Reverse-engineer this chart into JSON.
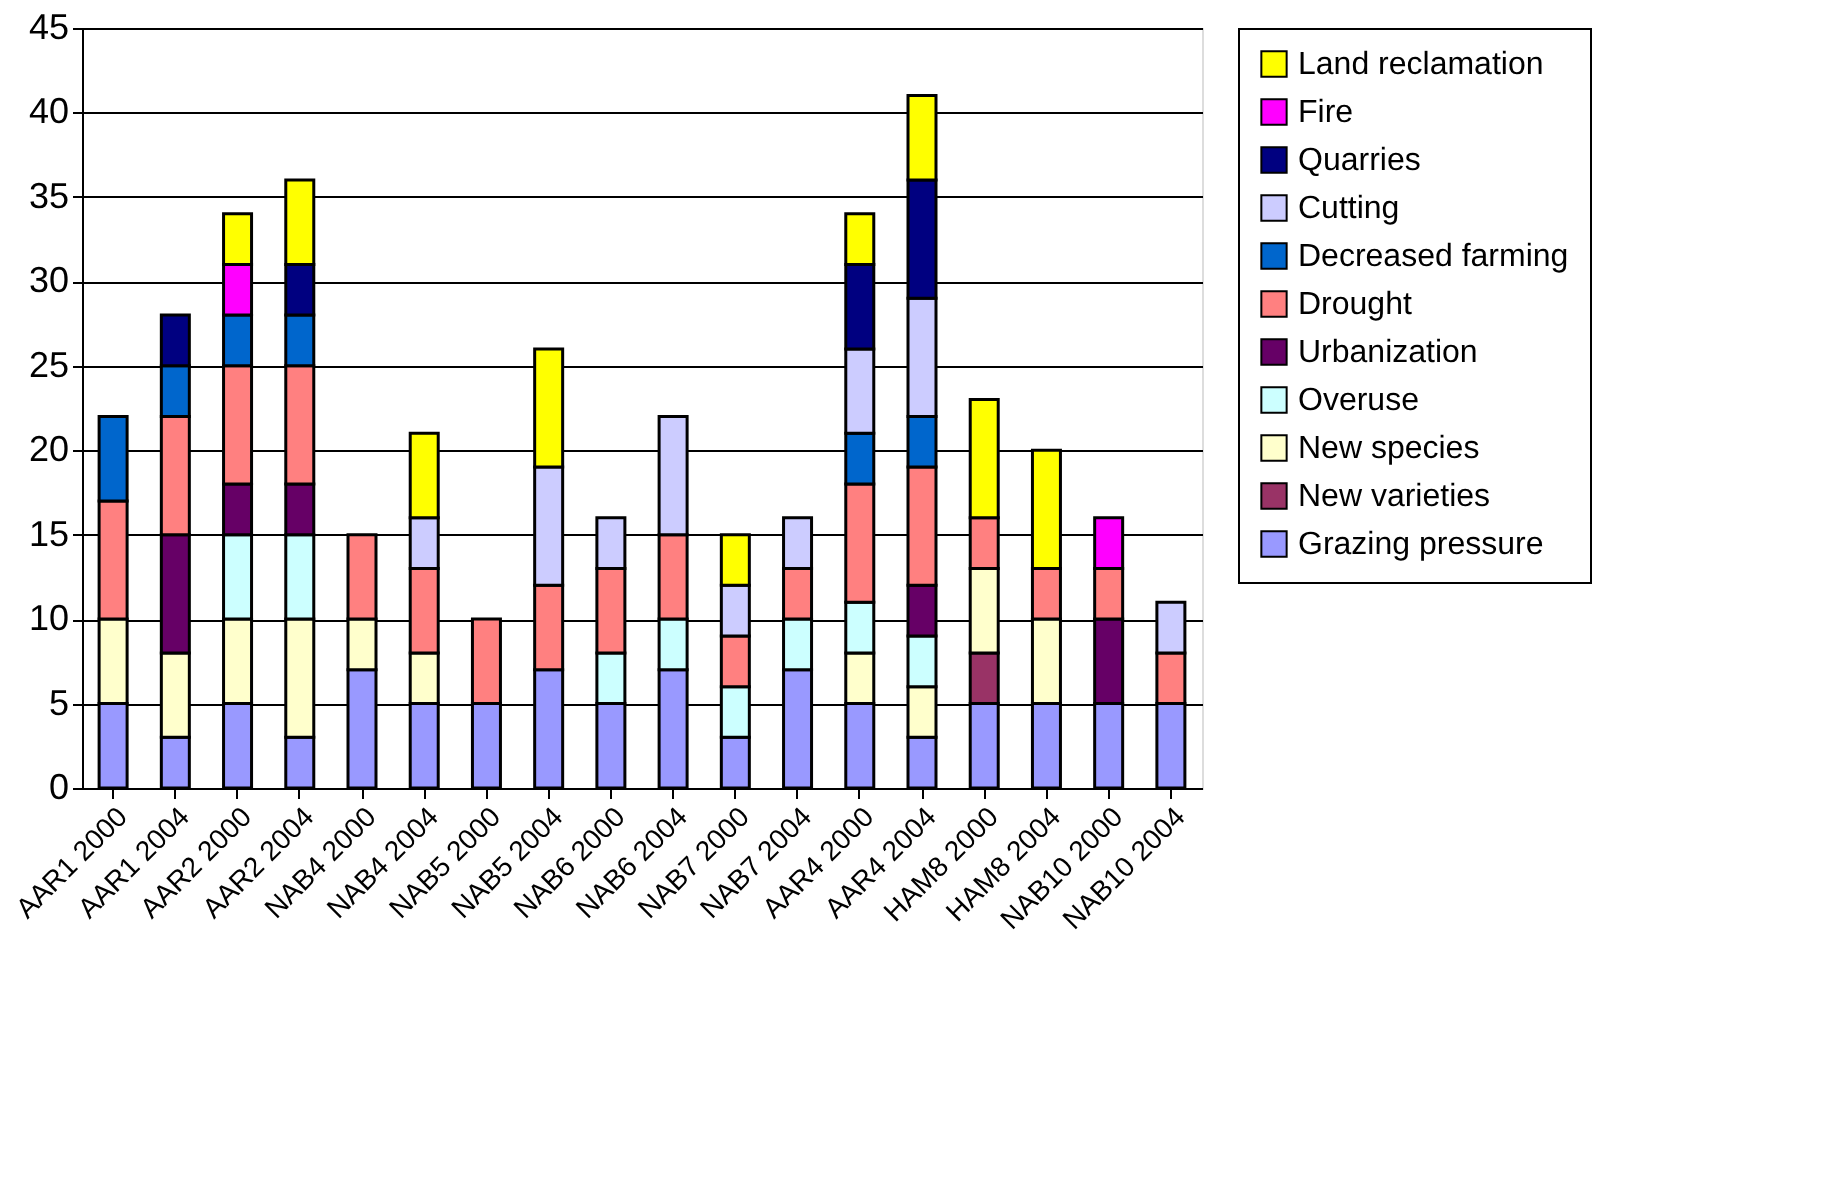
{
  "chart_data": {
    "type": "bar",
    "stacked": true,
    "categories": [
      "AAR1 2000",
      "AAR1 2004",
      "AAR2 2000",
      "AAR2 2004",
      "NAB4 2000",
      "NAB4 2004",
      "NAB5 2000",
      "NAB5 2004",
      "NAB6 2000",
      "NAB6 2004",
      "NAB7 2000",
      "NAB7 2004",
      "AAR4 2000",
      "AAR4 2004",
      "HAM8 2000",
      "HAM8 2004",
      "NAB10 2000",
      "NAB10 2004"
    ],
    "series": [
      {
        "name": "Grazing pressure",
        "color": "#9999ff",
        "values": [
          5,
          3,
          5,
          3,
          7,
          5,
          5,
          7,
          5,
          7,
          3,
          7,
          5,
          3,
          5,
          5,
          5,
          5
        ]
      },
      {
        "name": "New varieties",
        "color": "#993366",
        "values": [
          null,
          null,
          null,
          null,
          null,
          null,
          null,
          null,
          null,
          null,
          null,
          null,
          null,
          null,
          3,
          null,
          null,
          null
        ]
      },
      {
        "name": "New  species",
        "color": "#ffffcc",
        "values": [
          5,
          5,
          5,
          7,
          3,
          3,
          null,
          null,
          null,
          null,
          null,
          null,
          3,
          3,
          5,
          5,
          null,
          null
        ]
      },
      {
        "name": "Overuse",
        "color": "#ccffff",
        "values": [
          null,
          null,
          5,
          5,
          null,
          null,
          null,
          null,
          3,
          3,
          3,
          3,
          3,
          3,
          null,
          null,
          null,
          null
        ]
      },
      {
        "name": "Urbanization",
        "color": "#660066",
        "values": [
          null,
          7,
          3,
          3,
          null,
          null,
          null,
          null,
          null,
          null,
          null,
          null,
          null,
          3,
          null,
          null,
          5,
          null
        ]
      },
      {
        "name": "Drought",
        "color": "#ff8080",
        "values": [
          7,
          7,
          7,
          7,
          5,
          5,
          5,
          5,
          5,
          5,
          3,
          3,
          7,
          7,
          3,
          3,
          3,
          3
        ]
      },
      {
        "name": "Decreased farming",
        "color": "#0066cc",
        "values": [
          5,
          3,
          3,
          3,
          null,
          null,
          null,
          null,
          null,
          null,
          null,
          null,
          3,
          3,
          null,
          null,
          null,
          null
        ]
      },
      {
        "name": "Cutting",
        "color": "#ccccff",
        "values": [
          null,
          null,
          null,
          null,
          null,
          3,
          null,
          7,
          3,
          7,
          3,
          3,
          5,
          7,
          null,
          null,
          null,
          3
        ]
      },
      {
        "name": "Quarries",
        "color": "#000080",
        "values": [
          null,
          3,
          null,
          3,
          null,
          null,
          null,
          null,
          null,
          null,
          null,
          null,
          5,
          7,
          null,
          null,
          null,
          null
        ]
      },
      {
        "name": "Fire",
        "color": "#ff00ff",
        "values": [
          null,
          null,
          3,
          null,
          null,
          null,
          null,
          null,
          null,
          null,
          null,
          null,
          null,
          null,
          null,
          null,
          3,
          null
        ]
      },
      {
        "name": "Land reclamation",
        "color": "#ffff00",
        "values": [
          null,
          null,
          3,
          5,
          null,
          5,
          null,
          7,
          null,
          null,
          3,
          null,
          3,
          5,
          7,
          7,
          null,
          null
        ]
      }
    ],
    "ylim": [
      0,
      45
    ],
    "yticks": [
      0,
      5,
      10,
      15,
      20,
      25,
      30,
      35,
      40,
      45
    ],
    "grid": "y",
    "legend": "right"
  }
}
